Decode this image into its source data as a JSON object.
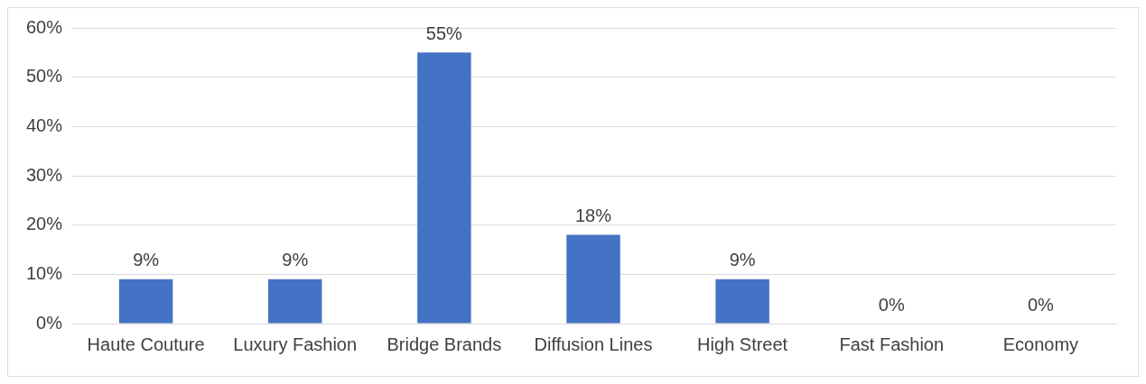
{
  "chart_data": {
    "type": "bar",
    "categories": [
      "Haute Couture",
      "Luxury Fashion",
      "Bridge Brands",
      "Diffusion Lines",
      "High Street",
      "Fast Fashion",
      "Economy"
    ],
    "values": [
      9,
      9,
      55,
      18,
      9,
      0,
      0
    ],
    "value_labels": [
      "9%",
      "9%",
      "55%",
      "18%",
      "9%",
      "0%",
      "0%"
    ],
    "color": "#4472c4",
    "ylim": [
      0,
      60
    ],
    "yticks": [
      {
        "value": 0,
        "label": "0%"
      },
      {
        "value": 10,
        "label": "10%"
      },
      {
        "value": 20,
        "label": "20%"
      },
      {
        "value": 30,
        "label": "30%"
      },
      {
        "value": 40,
        "label": "40%"
      },
      {
        "value": 50,
        "label": "50%"
      },
      {
        "value": 60,
        "label": "60%"
      }
    ],
    "grid": "y",
    "legend": false
  }
}
